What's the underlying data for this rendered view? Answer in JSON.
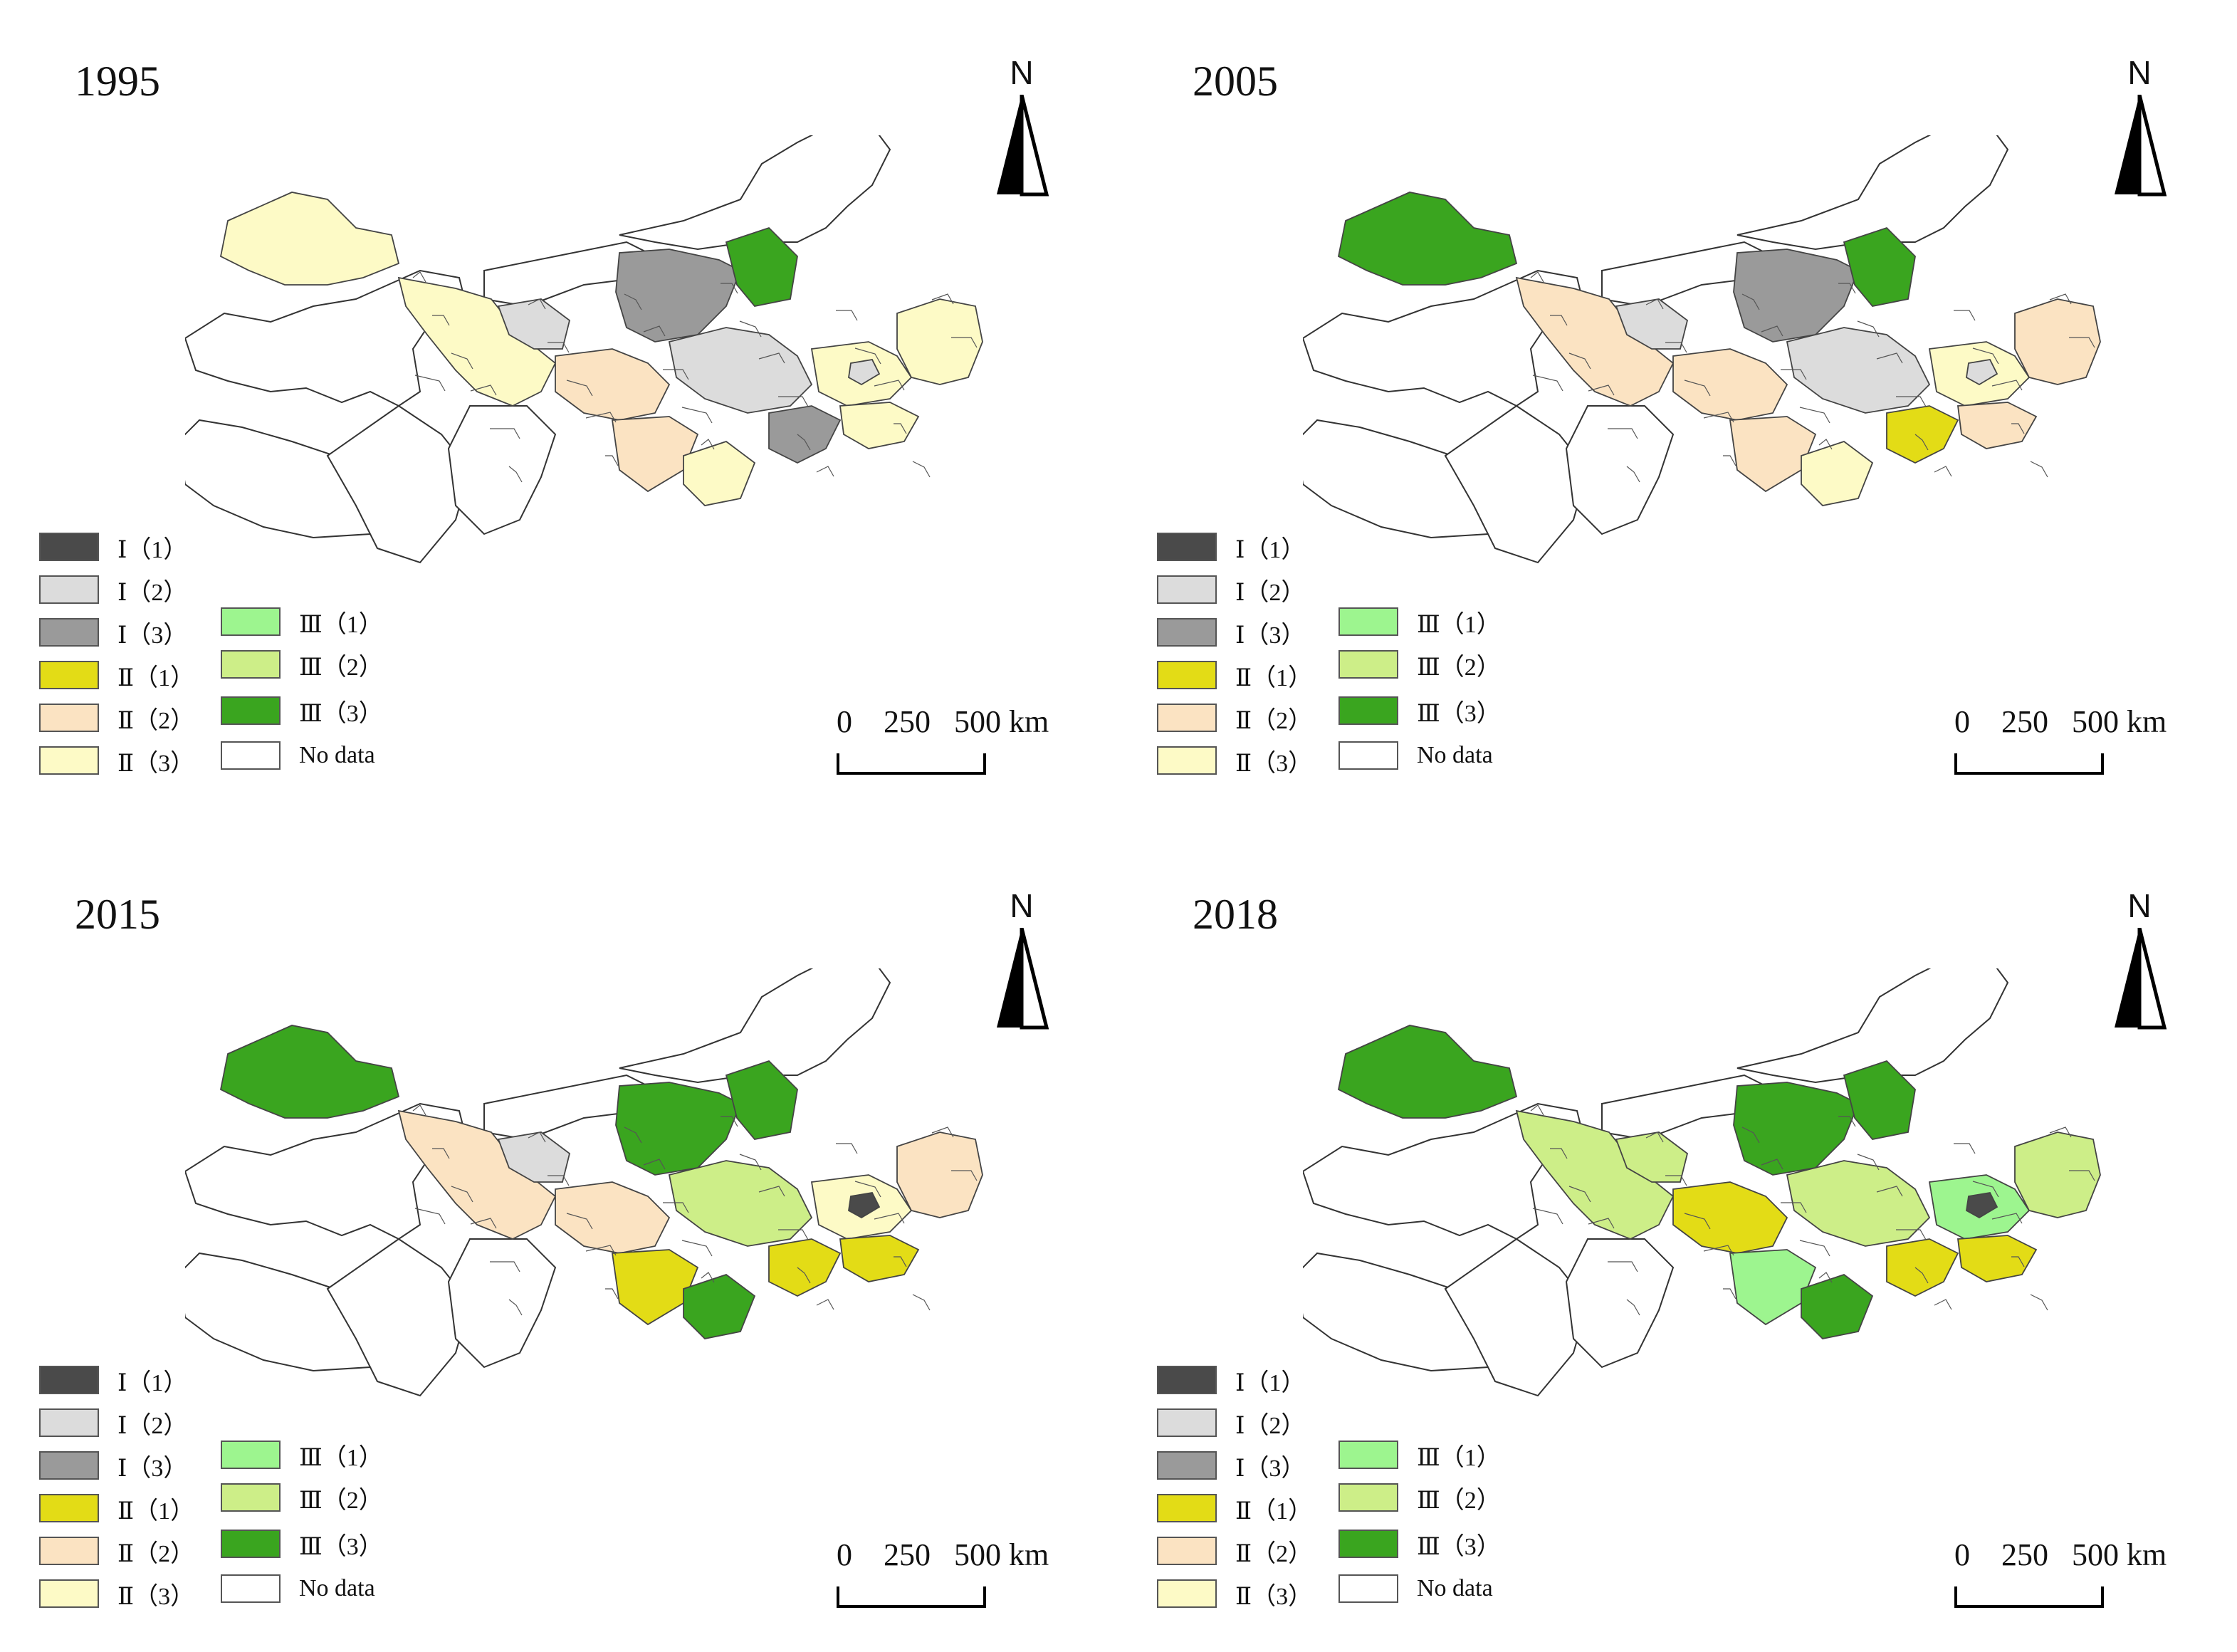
{
  "legend": {
    "items": [
      {
        "label": "Ⅰ（1）",
        "color": "#4a4a4a"
      },
      {
        "label": "Ⅰ（2）",
        "color": "#dcdcdc"
      },
      {
        "label": "Ⅰ（3）",
        "color": "#9a9a9a"
      },
      {
        "label": "Ⅱ（1）",
        "color": "#e3dc16"
      },
      {
        "label": "Ⅱ（2）",
        "color": "#fbe3c2"
      },
      {
        "label": "Ⅱ（3）",
        "color": "#fdfac6"
      },
      {
        "label": "Ⅲ（1）",
        "color": "#9df58f"
      },
      {
        "label": "Ⅲ（2）",
        "color": "#cdee88"
      },
      {
        "label": "Ⅲ（3）",
        "color": "#3aa51f"
      },
      {
        "label": "No data",
        "color": "#ffffff"
      }
    ]
  },
  "north_label": "N",
  "scale_label": "0    250   500 km",
  "panels": [
    {
      "year": "1995"
    },
    {
      "year": "2005"
    },
    {
      "year": "2015"
    },
    {
      "year": "2018"
    }
  ]
}
